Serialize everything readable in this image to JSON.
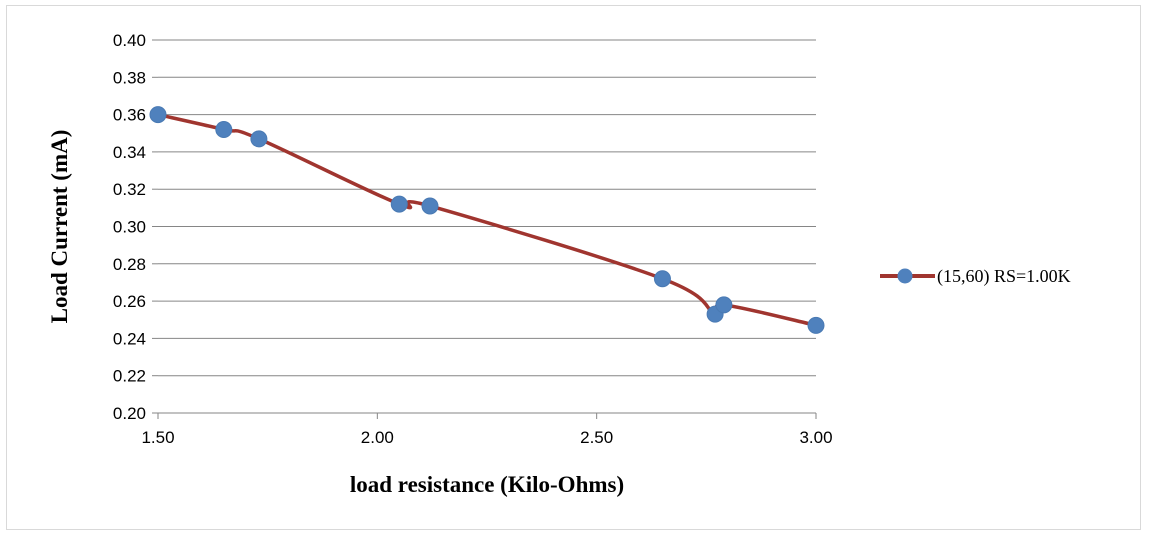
{
  "chart_data": {
    "type": "line",
    "title": "",
    "xlabel": "load  resistance (Kilo-Ohms)",
    "ylabel": "Load Current (mA)",
    "xlim": [
      1.5,
      3.0
    ],
    "ylim": [
      0.2,
      0.4
    ],
    "x_ticks": [
      "1.50",
      "2.00",
      "2.50",
      "3.00"
    ],
    "y_ticks": [
      "0.20",
      "0.22",
      "0.24",
      "0.26",
      "0.28",
      "0.30",
      "0.32",
      "0.34",
      "0.36",
      "0.38",
      "0.40"
    ],
    "grid": "horizontal",
    "legend_position": "right",
    "series": [
      {
        "name": "(15,60) RS=1.00K",
        "line_color": "#a0352f",
        "marker_color": "#4f81bd",
        "smoothed": true,
        "x": [
          1.5,
          1.65,
          1.73,
          2.05,
          2.12,
          2.65,
          2.77,
          2.79,
          3.0
        ],
        "y": [
          0.36,
          0.352,
          0.347,
          0.312,
          0.311,
          0.272,
          0.253,
          0.258,
          0.247
        ]
      }
    ]
  }
}
